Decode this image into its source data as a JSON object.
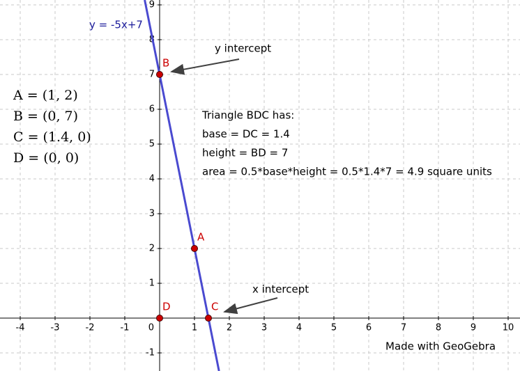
{
  "chart_data": {
    "type": "function-plot",
    "xlim": [
      -4.58,
      10.34
    ],
    "ylim": [
      -1.52,
      9.14
    ],
    "xticks": [
      -4,
      -3,
      -2,
      -1,
      0,
      1,
      2,
      3,
      4,
      5,
      6,
      7,
      8,
      9,
      10
    ],
    "yticks": [
      -1,
      1,
      2,
      3,
      4,
      5,
      6,
      7,
      8,
      9
    ],
    "grid": true,
    "line": {
      "label": "y = -5x+7",
      "slope": -5,
      "intercept": 7,
      "color": "#4a4ad0"
    },
    "points": [
      {
        "name": "A",
        "x": 1,
        "y": 2
      },
      {
        "name": "B",
        "x": 0,
        "y": 7
      },
      {
        "name": "C",
        "x": 1.4,
        "y": 0
      },
      {
        "name": "D",
        "x": 0,
        "y": 0
      }
    ],
    "point_color": "#cc0000",
    "algebra": [
      "A = (1, 2)",
      "B = (0, 7)",
      "C = (1.4, 0)",
      "D = (0, 0)"
    ],
    "annotations": [
      "y intercept",
      "x intercept"
    ],
    "textbox": [
      "Triangle BDC has:",
      "base = DC = 1.4",
      "height = BD = 7",
      "area = 0.5*base*height = 0.5*1.4*7 = 4.9 square units"
    ],
    "credit": "Made with GeoGebra"
  }
}
